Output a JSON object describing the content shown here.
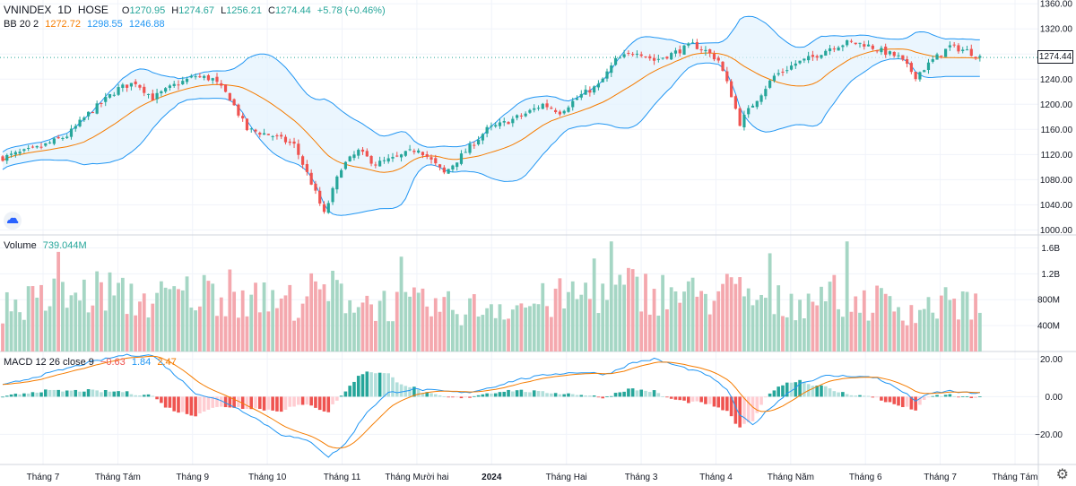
{
  "header": {
    "symbol": "VNINDEX",
    "interval": "1D",
    "exchange": "HOSE",
    "open_label": "O",
    "open": "1270.95",
    "high_label": "H",
    "high": "1274.67",
    "low_label": "L",
    "low": "1256.21",
    "close_label": "C",
    "close": "1274.44",
    "change": "+5.78 (+0.46%)"
  },
  "bb_legend": {
    "name": "BB 20 2",
    "basis": "1272.72",
    "upper": "1298.55",
    "lower": "1246.88"
  },
  "volume_legend": {
    "name": "Volume",
    "value": "739.044M"
  },
  "macd_legend": {
    "name": "MACD 12 26 close 9",
    "hist": "−0.63",
    "macd": "1.84",
    "signal": "2.47"
  },
  "last_price_tag": "1274.44",
  "colors": {
    "up": "#26a69a",
    "down": "#ef5350",
    "basis": "#f57c00",
    "band": "#2196f3",
    "band_fill": "#e3f2fd"
  },
  "chart_data": {
    "type": "candlestick",
    "price_axis": {
      "ticks": [
        "1360.00",
        "1320.00",
        "1280.00",
        "1240.00",
        "1200.00",
        "1160.00",
        "1120.00",
        "1080.00",
        "1040.00",
        "1000.00"
      ],
      "range": [
        992,
        1366
      ]
    },
    "volume_axis": {
      "ticks": [
        "1.6B",
        "1.2B",
        "800M",
        "400M"
      ],
      "range": [
        0,
        1.8
      ]
    },
    "macd_axis": {
      "ticks": [
        "20.00",
        "0.00",
        "−20.00"
      ],
      "range": [
        -36,
        24
      ]
    },
    "x_ticks": [
      {
        "label": "Tháng 7",
        "bold": false
      },
      {
        "label": "Tháng Tám",
        "bold": false
      },
      {
        "label": "Tháng 9",
        "bold": false
      },
      {
        "label": "Tháng 10",
        "bold": false
      },
      {
        "label": "Tháng 11",
        "bold": false
      },
      {
        "label": "Tháng Mười hai",
        "bold": false
      },
      {
        "label": "2024",
        "bold": true
      },
      {
        "label": "Tháng Hai",
        "bold": false
      },
      {
        "label": "Tháng 3",
        "bold": false
      },
      {
        "label": "Tháng 4",
        "bold": false
      },
      {
        "label": "Tháng Năm",
        "bold": false
      },
      {
        "label": "Tháng 6",
        "bold": false
      },
      {
        "label": "Tháng 7",
        "bold": false
      },
      {
        "label": "Tháng Tám",
        "bold": false
      }
    ],
    "price_keypoints": [
      [
        0,
        1115
      ],
      [
        8,
        1130
      ],
      [
        15,
        1150
      ],
      [
        20,
        1185
      ],
      [
        27,
        1225
      ],
      [
        31,
        1235
      ],
      [
        35,
        1210
      ],
      [
        40,
        1230
      ],
      [
        45,
        1245
      ],
      [
        49,
        1240
      ],
      [
        53,
        1210
      ],
      [
        57,
        1160
      ],
      [
        63,
        1150
      ],
      [
        68,
        1135
      ],
      [
        72,
        1075
      ],
      [
        75,
        1025
      ],
      [
        79,
        1100
      ],
      [
        83,
        1125
      ],
      [
        87,
        1105
      ],
      [
        92,
        1115
      ],
      [
        97,
        1130
      ],
      [
        103,
        1090
      ],
      [
        108,
        1125
      ],
      [
        113,
        1160
      ],
      [
        117,
        1170
      ],
      [
        122,
        1185
      ],
      [
        126,
        1200
      ],
      [
        130,
        1188
      ],
      [
        135,
        1215
      ],
      [
        139,
        1230
      ],
      [
        143,
        1270
      ],
      [
        148,
        1285
      ],
      [
        152,
        1270
      ],
      [
        156,
        1280
      ],
      [
        161,
        1295
      ],
      [
        164,
        1285
      ],
      [
        167,
        1270
      ],
      [
        170,
        1215
      ],
      [
        172,
        1170
      ],
      [
        175,
        1200
      ],
      [
        180,
        1245
      ],
      [
        185,
        1265
      ],
      [
        189,
        1275
      ],
      [
        193,
        1290
      ],
      [
        197,
        1298
      ],
      [
        201,
        1296
      ],
      [
        205,
        1285
      ],
      [
        209,
        1275
      ],
      [
        213,
        1245
      ],
      [
        217,
        1270
      ],
      [
        221,
        1292
      ],
      [
        225,
        1285
      ],
      [
        228,
        1275
      ]
    ],
    "volume_keypoints": [
      [
        0,
        0.75
      ],
      [
        10,
        0.85
      ],
      [
        20,
        0.95
      ],
      [
        24,
        1.05
      ],
      [
        28,
        0.9
      ],
      [
        35,
        0.85
      ],
      [
        42,
        0.95
      ],
      [
        50,
        1.0
      ],
      [
        58,
        0.85
      ],
      [
        65,
        0.8
      ],
      [
        72,
        0.95
      ],
      [
        78,
        1.0
      ],
      [
        85,
        0.82
      ],
      [
        92,
        0.78
      ],
      [
        100,
        0.75
      ],
      [
        108,
        0.7
      ],
      [
        115,
        0.8
      ],
      [
        120,
        0.75
      ],
      [
        128,
        0.85
      ],
      [
        135,
        0.95
      ],
      [
        140,
        1.0
      ],
      [
        146,
        1.05
      ],
      [
        152,
        1.0
      ],
      [
        158,
        0.95
      ],
      [
        164,
        0.9
      ],
      [
        170,
        1.0
      ],
      [
        176,
        0.85
      ],
      [
        182,
        0.8
      ],
      [
        188,
        0.9
      ],
      [
        194,
        0.95
      ],
      [
        200,
        0.85
      ],
      [
        206,
        0.8
      ],
      [
        212,
        0.7
      ],
      [
        218,
        0.75
      ],
      [
        224,
        0.82
      ],
      [
        228,
        0.75
      ]
    ],
    "macd_keypoints": [
      [
        0,
        6
      ],
      [
        10,
        12
      ],
      [
        20,
        18
      ],
      [
        28,
        22
      ],
      [
        35,
        22
      ],
      [
        40,
        12
      ],
      [
        45,
        2
      ],
      [
        52,
        -3
      ],
      [
        58,
        -10
      ],
      [
        65,
        -20
      ],
      [
        72,
        -24
      ],
      [
        76,
        -32
      ],
      [
        80,
        -25
      ],
      [
        85,
        -8
      ],
      [
        90,
        2
      ],
      [
        96,
        4
      ],
      [
        102,
        3
      ],
      [
        108,
        2
      ],
      [
        114,
        5
      ],
      [
        120,
        9
      ],
      [
        128,
        12
      ],
      [
        135,
        13
      ],
      [
        141,
        12
      ],
      [
        147,
        18
      ],
      [
        152,
        20
      ],
      [
        158,
        16
      ],
      [
        164,
        12
      ],
      [
        169,
        4
      ],
      [
        172,
        -10
      ],
      [
        175,
        -15
      ],
      [
        180,
        -4
      ],
      [
        186,
        7
      ],
      [
        192,
        11
      ],
      [
        198,
        11
      ],
      [
        204,
        10
      ],
      [
        209,
        4
      ],
      [
        213,
        -2
      ],
      [
        217,
        2
      ],
      [
        221,
        3
      ],
      [
        225,
        2
      ],
      [
        228,
        1.8
      ]
    ],
    "n_bars": 229
  }
}
